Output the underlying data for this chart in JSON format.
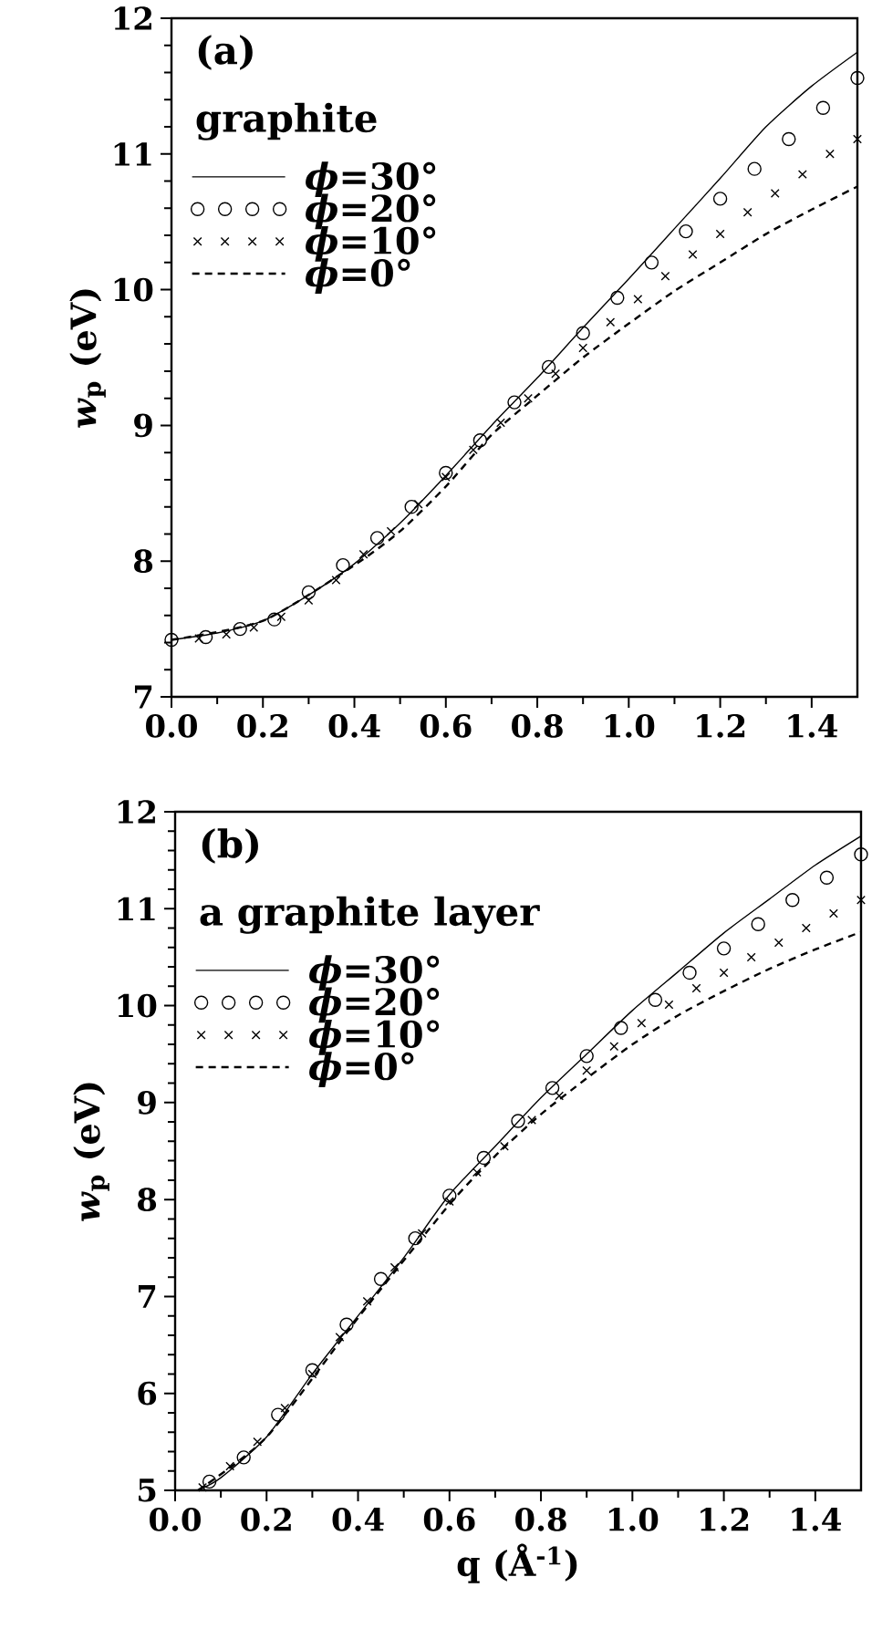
{
  "chart_data": [
    {
      "type": "line",
      "annotations": [
        "(a)"
      ],
      "legend_title": "graphite",
      "ylabel": "*w*$_{p}$ (eV)",
      "legend": "top left",
      "xlim": [
        0,
        1.5
      ],
      "ylim": [
        7,
        12
      ],
      "xticks": [
        {
          "value": 0,
          "label": "0.0"
        },
        {
          "value": 0.2,
          "label": "0.2"
        },
        {
          "value": 0.4,
          "label": "0.4"
        },
        {
          "value": 0.6,
          "label": "0.6"
        },
        {
          "value": 0.8,
          "label": "0.8"
        },
        {
          "value": 1.0,
          "label": "1.0"
        },
        {
          "value": 1.2,
          "label": "1.2"
        },
        {
          "value": 1.4,
          "label": "1.4"
        }
      ],
      "yticks": [
        7,
        8,
        9,
        10,
        11,
        12
      ],
      "series": [
        {
          "name": "*ϕ*=30°",
          "line_style": "solid",
          "color": "#000000",
          "x": [
            0,
            0.1,
            0.2,
            0.3,
            0.4,
            0.5,
            0.6,
            0.7,
            0.8,
            0.9,
            1.0,
            1.1,
            1.2,
            1.3,
            1.4,
            1.5
          ],
          "values": [
            7.42,
            7.47,
            7.56,
            7.75,
            7.98,
            8.28,
            8.63,
            9.0,
            9.35,
            9.72,
            10.08,
            10.45,
            10.82,
            11.2,
            11.5,
            11.75
          ]
        },
        {
          "name": "*ϕ*=20°",
          "type": "scatter",
          "marker": "circle",
          "color": "#000000",
          "x": [
            0,
            0.075,
            0.15,
            0.225,
            0.3,
            0.375,
            0.45,
            0.525,
            0.6,
            0.675,
            0.75,
            0.825,
            0.9,
            0.975,
            1.05,
            1.125,
            1.2,
            1.275,
            1.35,
            1.425,
            1.5
          ],
          "values": [
            7.42,
            7.44,
            7.5,
            7.57,
            7.77,
            7.97,
            8.17,
            8.4,
            8.65,
            8.89,
            9.17,
            9.43,
            9.68,
            9.94,
            10.2,
            10.43,
            10.67,
            10.89,
            11.11,
            11.34,
            11.56
          ]
        },
        {
          "name": "*ϕ*=10°",
          "type": "scatter",
          "marker": "cross",
          "color": "#000000",
          "x": [
            0.06,
            0.12,
            0.18,
            0.24,
            0.3,
            0.36,
            0.42,
            0.48,
            0.54,
            0.6,
            0.66,
            0.72,
            0.78,
            0.84,
            0.9,
            0.96,
            1.02,
            1.08,
            1.14,
            1.2,
            1.26,
            1.32,
            1.38,
            1.44,
            1.5
          ],
          "values": [
            7.43,
            7.46,
            7.51,
            7.59,
            7.71,
            7.86,
            8.05,
            8.22,
            8.42,
            8.62,
            8.82,
            9.02,
            9.2,
            9.38,
            9.57,
            9.76,
            9.93,
            10.1,
            10.26,
            10.41,
            10.57,
            10.71,
            10.85,
            11.0,
            11.11
          ]
        },
        {
          "name": "*ϕ*=0°",
          "line_style": "dashed",
          "color": "#000000",
          "x": [
            0,
            0.2,
            0.4,
            0.5,
            0.6,
            0.7,
            0.8,
            0.9,
            1.0,
            1.1,
            1.2,
            1.3,
            1.4,
            1.5
          ],
          "values": [
            7.42,
            7.56,
            7.97,
            8.22,
            8.55,
            8.93,
            9.22,
            9.5,
            9.75,
            9.99,
            10.2,
            10.41,
            10.59,
            10.76
          ]
        }
      ]
    },
    {
      "type": "line",
      "annotations": [
        "(b)"
      ],
      "legend_title": "a graphite layer",
      "ylabel": "*w*$_{p}$ (eV)",
      "xlabel": "q (Å$^{-1}$)",
      "legend": "top left",
      "xlim": [
        0,
        1.5
      ],
      "ylim": [
        5,
        12
      ],
      "xticks": [
        {
          "value": 0,
          "label": "0.0"
        },
        {
          "value": 0.2,
          "label": "0.2"
        },
        {
          "value": 0.4,
          "label": "0.4"
        },
        {
          "value": 0.6,
          "label": "0.6"
        },
        {
          "value": 0.8,
          "label": "0.8"
        },
        {
          "value": 1.0,
          "label": "1.0"
        },
        {
          "value": 1.2,
          "label": "1.2"
        },
        {
          "value": 1.4,
          "label": "1.4"
        }
      ],
      "yticks": [
        5,
        6,
        7,
        8,
        9,
        10,
        11,
        12
      ],
      "series": [
        {
          "name": "*ϕ*=30°",
          "line_style": "solid",
          "color": "#000000",
          "x": [
            0.05,
            0.1,
            0.2,
            0.3,
            0.4,
            0.5,
            0.6,
            0.7,
            0.8,
            0.9,
            1.0,
            1.1,
            1.2,
            1.3,
            1.4,
            1.5
          ],
          "values": [
            5.0,
            5.13,
            5.55,
            6.2,
            6.8,
            7.4,
            8.05,
            8.55,
            9.05,
            9.5,
            9.95,
            10.35,
            10.75,
            11.1,
            11.45,
            11.75
          ]
        },
        {
          "name": "*ϕ*=20°",
          "type": "scatter",
          "marker": "circle",
          "color": "#000000",
          "x": [
            0.075,
            0.15,
            0.225,
            0.3,
            0.375,
            0.45,
            0.525,
            0.6,
            0.675,
            0.75,
            0.825,
            0.9,
            0.975,
            1.05,
            1.125,
            1.2,
            1.275,
            1.35,
            1.425,
            1.5
          ],
          "values": [
            5.09,
            5.34,
            5.78,
            6.24,
            6.71,
            7.18,
            7.6,
            8.04,
            8.43,
            8.81,
            9.15,
            9.48,
            9.77,
            10.06,
            10.34,
            10.59,
            10.84,
            11.09,
            11.32,
            11.56
          ]
        },
        {
          "name": "*ϕ*=10°",
          "type": "scatter",
          "marker": "cross",
          "color": "#000000",
          "x": [
            0.06,
            0.12,
            0.18,
            0.24,
            0.3,
            0.36,
            0.42,
            0.48,
            0.54,
            0.6,
            0.66,
            0.72,
            0.78,
            0.84,
            0.9,
            0.96,
            1.02,
            1.08,
            1.14,
            1.2,
            1.26,
            1.32,
            1.38,
            1.44,
            1.5
          ],
          "values": [
            5.03,
            5.25,
            5.5,
            5.85,
            6.2,
            6.58,
            6.95,
            7.3,
            7.65,
            7.98,
            8.28,
            8.55,
            8.82,
            9.07,
            9.33,
            9.58,
            9.82,
            10.01,
            10.18,
            10.34,
            10.5,
            10.65,
            10.8,
            10.95,
            11.09
          ]
        },
        {
          "name": "*ϕ*=0°",
          "line_style": "dashed",
          "color": "#000000",
          "x": [
            0.05,
            0.2,
            0.4,
            0.6,
            0.7,
            0.8,
            0.9,
            1.0,
            1.1,
            1.2,
            1.3,
            1.4,
            1.5
          ],
          "values": [
            5.0,
            5.55,
            6.78,
            7.95,
            8.45,
            8.88,
            9.25,
            9.6,
            9.9,
            10.15,
            10.38,
            10.58,
            10.76
          ]
        }
      ]
    }
  ]
}
